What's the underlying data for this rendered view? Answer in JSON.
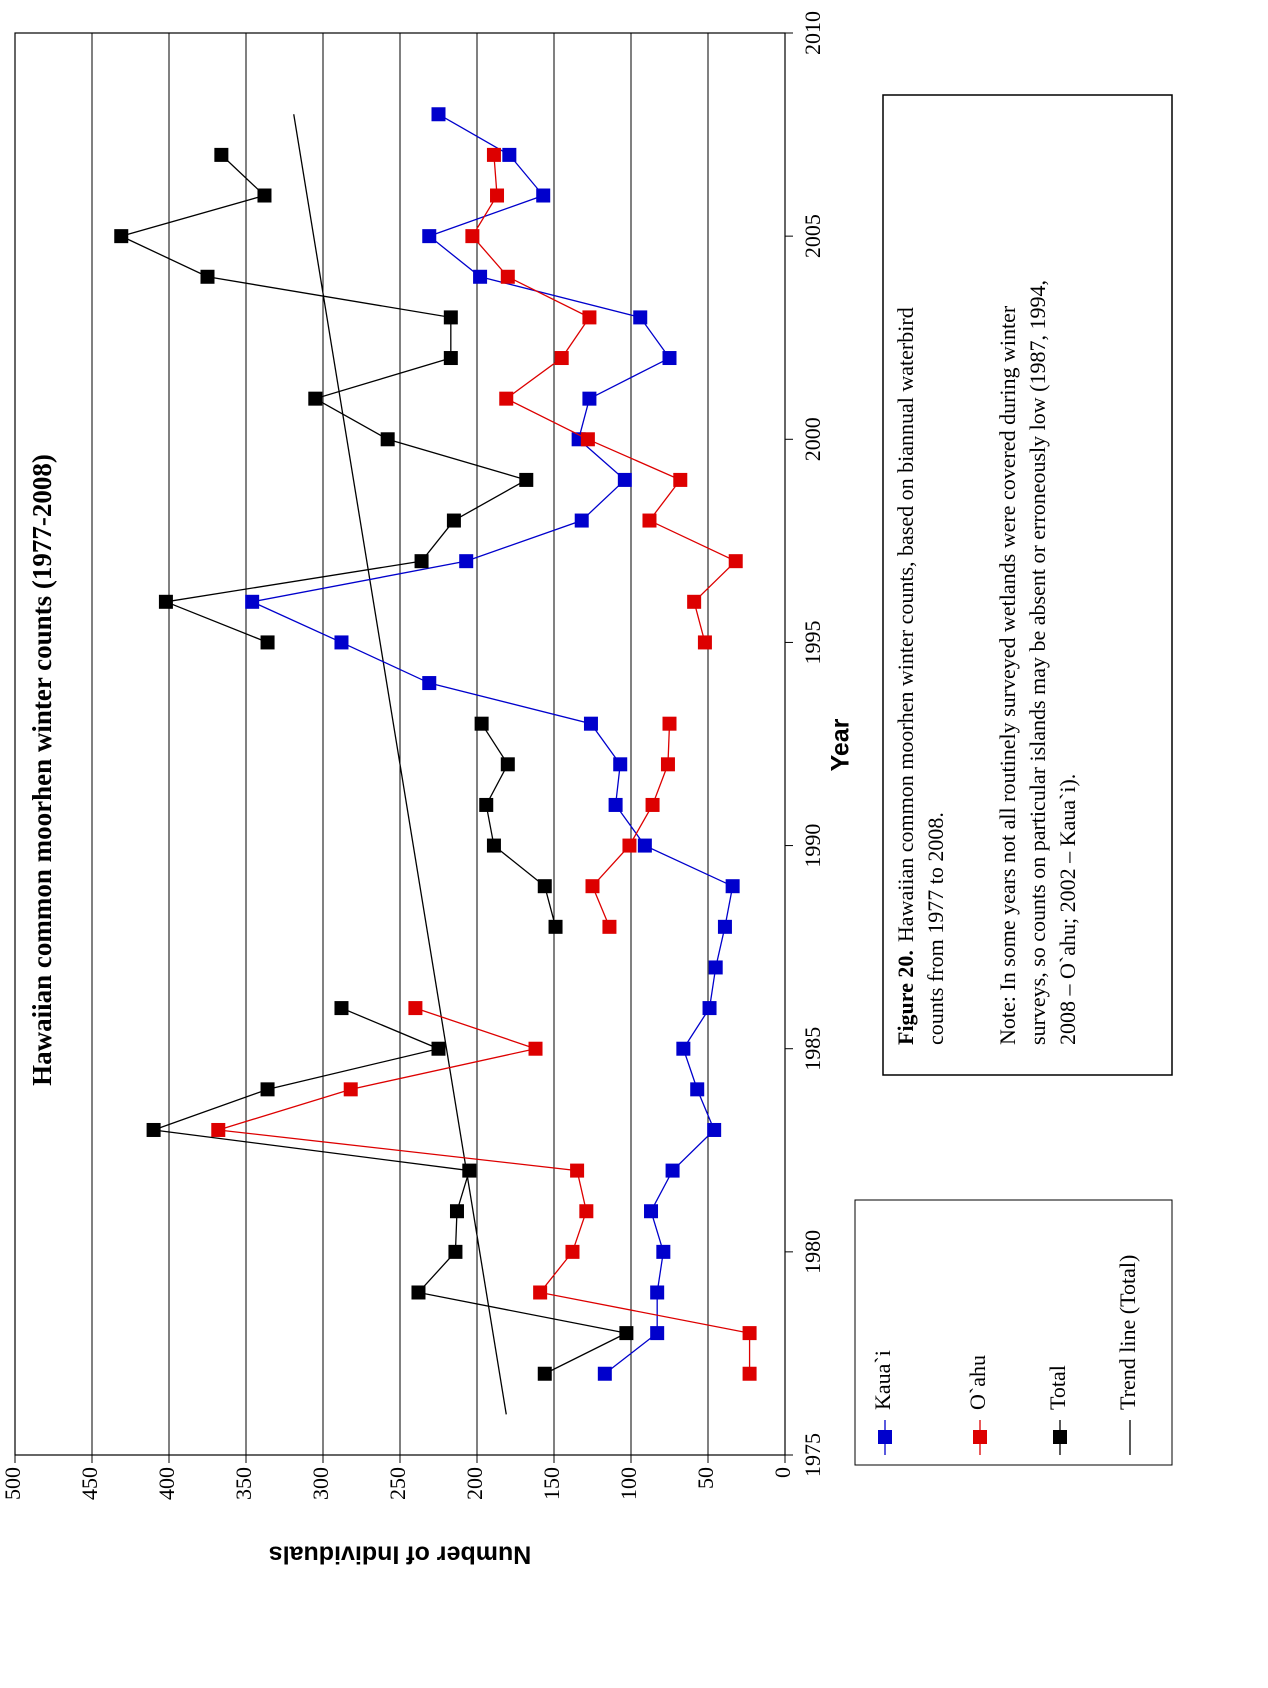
{
  "chart_data": {
    "type": "line",
    "title": "Hawaiian common moorhen winter counts (1977-2008)",
    "x_label": "Year",
    "y_label": "Number of Individuals",
    "x": [
      1977,
      1978,
      1979,
      1980,
      1981,
      1982,
      1983,
      1984,
      1985,
      1986,
      1987,
      1988,
      1989,
      1990,
      1991,
      1992,
      1993,
      1994,
      1995,
      1996,
      1997,
      1998,
      1999,
      2000,
      2001,
      2002,
      2003,
      2004,
      2005,
      2006,
      2007,
      2008
    ],
    "series": [
      {
        "name": "Kaua`i",
        "color": "#0000cc",
        "values": [
          117,
          83,
          83,
          79,
          87,
          73,
          46,
          57,
          66,
          49,
          45,
          39,
          34,
          91,
          110,
          107,
          126,
          231,
          288,
          346,
          207,
          132,
          104,
          134,
          127,
          75,
          94,
          198,
          231,
          157,
          179,
          225
        ]
      },
      {
        "name": "O`ahu",
        "color": "#dd0000",
        "values": [
          23,
          23,
          159,
          138,
          129,
          135,
          368,
          282,
          162,
          240,
          null,
          114,
          125,
          101,
          86,
          76,
          75,
          null,
          52,
          59,
          32,
          88,
          68,
          128,
          181,
          145,
          127,
          180,
          203,
          187,
          189,
          null
        ]
      },
      {
        "name": "Total",
        "color": "#000000",
        "values": [
          156,
          103,
          238,
          214,
          213,
          205,
          410,
          336,
          225,
          288,
          null,
          149,
          156,
          189,
          194,
          180,
          197,
          null,
          336,
          402,
          236,
          215,
          168,
          258,
          305,
          217,
          217,
          375,
          431,
          338,
          366,
          null
        ]
      }
    ],
    "trend": {
      "name": "Trend line (Total)",
      "color": "#000000",
      "x": [
        1976,
        2008
      ],
      "values": [
        181,
        319
      ]
    },
    "xlim": [
      1975,
      2010
    ],
    "xticks": [
      1975,
      1980,
      1985,
      1990,
      1995,
      2000,
      2005,
      2010
    ],
    "ylim": [
      0,
      500
    ],
    "yticks": [
      0,
      50,
      100,
      150,
      200,
      250,
      300,
      350,
      400,
      450,
      500
    ],
    "grid": true,
    "caption": {
      "label": "Figure 20.",
      "lines": [
        "Hawaiian common moorhen winter counts, based on biannual waterbird",
        "counts from 1977 to 2008."
      ]
    },
    "note": [
      "Note: In some years not all routinely surveyed wetlands were covered during winter",
      "surveys, so counts on particular islands may be absent or erroneously low (1987, 1994,",
      "2008 – O`ahu; 2002 – Kaua`i)."
    ]
  }
}
